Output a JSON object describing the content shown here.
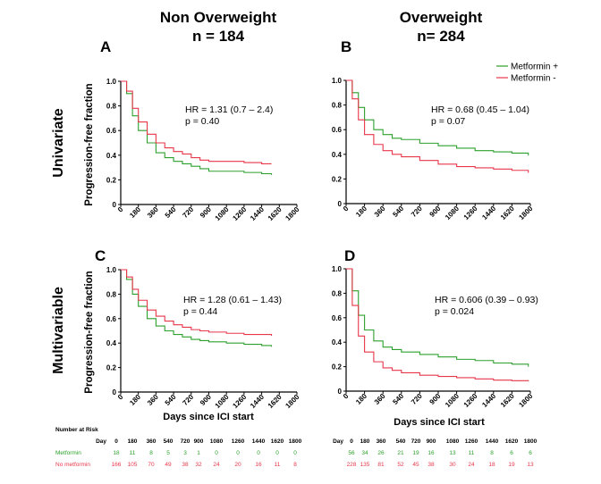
{
  "colors": {
    "metformin_plus": "#2ca02c",
    "metformin_minus": "#e8364a",
    "axis": "#000000"
  },
  "header": {
    "col_left_title": "Non Overweight",
    "col_left_n": "n = 184",
    "col_right_title": "Overweight",
    "col_right_n": "n= 284",
    "row_top_title": "Univariate",
    "row_bottom_title": "Multivariable"
  },
  "legend": {
    "metformin_plus": "Metformin +",
    "metformin_minus": "Metformin -"
  },
  "axis_labels": {
    "ylabel": "Progression-free fraction",
    "xlabel": "Days since ICI start"
  },
  "chart_data": [
    {
      "panel": "A",
      "type": "line",
      "title": "A",
      "xlabel": "",
      "ylabel": "Progression-free fraction",
      "xlim": [
        0,
        1800
      ],
      "ylim": [
        0,
        1.0
      ],
      "xticks": [
        "0",
        "180",
        "360",
        "540",
        "720",
        "900",
        "1080",
        "1260",
        "1440",
        "1620",
        "1800"
      ],
      "yticks": [
        "0",
        "0.2",
        "0.4",
        "0.6",
        "0.8",
        "1.0"
      ],
      "hr_text": "HR = 1.31 (0.7 – 2.4)",
      "p_text": "p = 0.40",
      "series": [
        {
          "name": "Metformin +",
          "x": [
            0,
            60,
            120,
            180,
            270,
            360,
            450,
            540,
            630,
            720,
            810,
            900,
            1080,
            1260,
            1440,
            1540
          ],
          "y": [
            1.0,
            0.9,
            0.72,
            0.6,
            0.5,
            0.42,
            0.38,
            0.35,
            0.33,
            0.31,
            0.29,
            0.27,
            0.27,
            0.26,
            0.25,
            0.24
          ]
        },
        {
          "name": "Metformin -",
          "x": [
            0,
            60,
            120,
            180,
            270,
            360,
            450,
            540,
            630,
            720,
            810,
            900,
            1080,
            1260,
            1440,
            1540
          ],
          "y": [
            1.0,
            0.92,
            0.78,
            0.67,
            0.57,
            0.5,
            0.46,
            0.43,
            0.41,
            0.38,
            0.36,
            0.35,
            0.35,
            0.34,
            0.33,
            0.33
          ]
        }
      ]
    },
    {
      "panel": "B",
      "type": "line",
      "title": "B",
      "xlabel": "",
      "ylabel": "",
      "xlim": [
        0,
        1800
      ],
      "ylim": [
        0,
        1.0
      ],
      "xticks": [
        "0",
        "180",
        "360",
        "540",
        "720",
        "900",
        "1080",
        "1260",
        "1440",
        "1620",
        "1800"
      ],
      "yticks": [
        "0",
        "0.2",
        "0.4",
        "0.6",
        "0.8",
        "1.0"
      ],
      "hr_text": "HR = 0.68 (0.45 – 1.04)",
      "p_text": "p = 0.07",
      "series": [
        {
          "name": "Metformin +",
          "x": [
            0,
            60,
            120,
            180,
            270,
            360,
            450,
            540,
            720,
            900,
            1080,
            1260,
            1440,
            1620,
            1780
          ],
          "y": [
            1.0,
            0.9,
            0.78,
            0.68,
            0.6,
            0.56,
            0.53,
            0.52,
            0.49,
            0.47,
            0.45,
            0.43,
            0.42,
            0.41,
            0.39
          ]
        },
        {
          "name": "Metformin -",
          "x": [
            0,
            60,
            120,
            180,
            270,
            360,
            450,
            540,
            720,
            900,
            1080,
            1260,
            1440,
            1620,
            1780
          ],
          "y": [
            1.0,
            0.85,
            0.68,
            0.56,
            0.48,
            0.43,
            0.4,
            0.38,
            0.35,
            0.32,
            0.3,
            0.29,
            0.28,
            0.27,
            0.25
          ]
        }
      ]
    },
    {
      "panel": "C",
      "type": "line",
      "title": "C",
      "xlabel": "Days since ICI start",
      "ylabel": "Progression-free fraction",
      "xlim": [
        0,
        1800
      ],
      "ylim": [
        0,
        1.0
      ],
      "xticks": [
        "0",
        "180",
        "360",
        "540",
        "720",
        "900",
        "1080",
        "1260",
        "1440",
        "1620",
        "1800"
      ],
      "yticks": [
        "0",
        "0.2",
        "0.4",
        "0.6",
        "0.8",
        "1.0"
      ],
      "hr_text": "HR = 1.28 (0.61 – 1.43)",
      "p_text": "p = 0.44",
      "series": [
        {
          "name": "Metformin +",
          "x": [
            0,
            60,
            120,
            180,
            270,
            360,
            450,
            540,
            630,
            720,
            810,
            900,
            1080,
            1260,
            1440,
            1540
          ],
          "y": [
            1.0,
            0.92,
            0.8,
            0.7,
            0.6,
            0.54,
            0.5,
            0.47,
            0.45,
            0.43,
            0.42,
            0.41,
            0.4,
            0.39,
            0.38,
            0.37
          ]
        },
        {
          "name": "Metformin -",
          "x": [
            0,
            60,
            120,
            180,
            270,
            360,
            450,
            540,
            630,
            720,
            810,
            900,
            1080,
            1260,
            1440,
            1540
          ],
          "y": [
            1.0,
            0.94,
            0.84,
            0.75,
            0.67,
            0.62,
            0.58,
            0.55,
            0.53,
            0.51,
            0.5,
            0.49,
            0.48,
            0.47,
            0.47,
            0.46
          ]
        }
      ]
    },
    {
      "panel": "D",
      "type": "line",
      "title": "D",
      "xlabel": "Days since ICI start",
      "ylabel": "",
      "xlim": [
        0,
        1800
      ],
      "ylim": [
        0,
        1.0
      ],
      "xticks": [
        "0",
        "180",
        "360",
        "540",
        "720",
        "900",
        "1080",
        "1260",
        "1440",
        "1620",
        "1800"
      ],
      "yticks": [
        "0",
        "0.2",
        "0.4",
        "0.6",
        "0.8",
        "1.0"
      ],
      "hr_text": "HR = 0.606 (0.39 – 0.93)",
      "p_text": "p = 0.024",
      "series": [
        {
          "name": "Metformin +",
          "x": [
            0,
            60,
            120,
            180,
            270,
            360,
            450,
            540,
            720,
            900,
            1080,
            1260,
            1440,
            1620,
            1780
          ],
          "y": [
            1.0,
            0.82,
            0.62,
            0.5,
            0.41,
            0.36,
            0.34,
            0.32,
            0.3,
            0.28,
            0.26,
            0.25,
            0.23,
            0.22,
            0.2
          ]
        },
        {
          "name": "Metformin -",
          "x": [
            0,
            60,
            120,
            180,
            270,
            360,
            450,
            540,
            720,
            900,
            1080,
            1260,
            1440,
            1620,
            1780
          ],
          "y": [
            1.0,
            0.7,
            0.45,
            0.32,
            0.24,
            0.19,
            0.17,
            0.15,
            0.13,
            0.12,
            0.11,
            0.1,
            0.09,
            0.085,
            0.08
          ]
        }
      ]
    }
  ],
  "risk_tables": {
    "left": {
      "title": "Number at Risk",
      "day_label": "Day",
      "days": [
        "0",
        "180",
        "360",
        "540",
        "720",
        "900",
        "1080",
        "1260",
        "1440",
        "1620",
        "1800"
      ],
      "rows": [
        {
          "label": "Metformin",
          "values": [
            "18",
            "11",
            "8",
            "5",
            "3",
            "1",
            "0",
            "0",
            "0",
            "0",
            "0"
          ]
        },
        {
          "label": "No metformin",
          "values": [
            "166",
            "105",
            "70",
            "49",
            "38",
            "32",
            "24",
            "20",
            "16",
            "11",
            "8"
          ]
        }
      ]
    },
    "right": {
      "day_label": "Day",
      "days": [
        "0",
        "180",
        "360",
        "540",
        "720",
        "900",
        "1080",
        "1260",
        "1440",
        "1620",
        "1800"
      ],
      "rows": [
        {
          "values": [
            "56",
            "34",
            "26",
            "21",
            "19",
            "16",
            "13",
            "11",
            "8",
            "6",
            "6"
          ]
        },
        {
          "values": [
            "228",
            "135",
            "81",
            "52",
            "45",
            "38",
            "30",
            "24",
            "18",
            "19",
            "13"
          ]
        }
      ]
    }
  }
}
